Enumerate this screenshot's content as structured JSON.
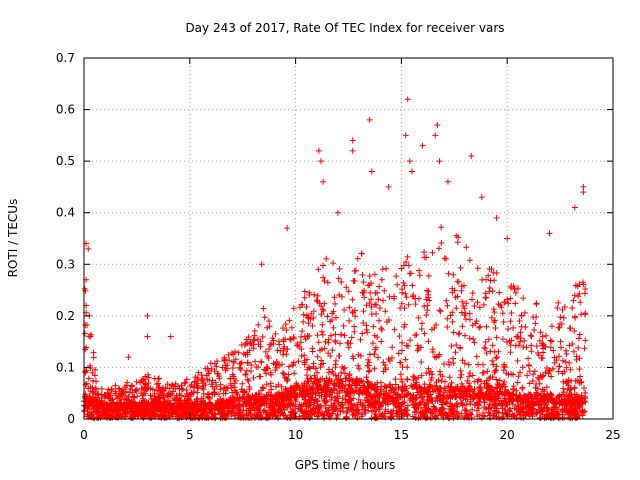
{
  "chart_data": {
    "type": "scatter",
    "title": "Day 243 of 2017, Rate Of TEC Index for receiver vars",
    "xlabel": "GPS time / hours",
    "ylabel": "ROTI / TECUs",
    "xlim": [
      0,
      25
    ],
    "ylim": [
      0,
      0.7
    ],
    "xticks": [
      0,
      5,
      10,
      15,
      20,
      25
    ],
    "xtick_labels": [
      "0",
      "5",
      "10",
      "15",
      "20",
      "25"
    ],
    "yticks": [
      0,
      0.1,
      0.2,
      0.3,
      0.4,
      0.5,
      0.6,
      0.7
    ],
    "ytick_labels": [
      "0",
      "0.1",
      "0.2",
      "0.3",
      "0.4",
      "0.5",
      "0.6",
      "0.7"
    ],
    "grid": true,
    "marker": "plus",
    "series_color": "#ff0000",
    "data_range": {
      "x_min": 0,
      "x_max": 23.7
    },
    "envelope": [
      {
        "x": 0.0,
        "base": 0.03,
        "peak": 0.34
      },
      {
        "x": 0.3,
        "base": 0.03,
        "peak": 0.19
      },
      {
        "x": 0.6,
        "base": 0.02,
        "peak": 0.07
      },
      {
        "x": 1.0,
        "base": 0.02,
        "peak": 0.06
      },
      {
        "x": 2.0,
        "base": 0.02,
        "peak": 0.07
      },
      {
        "x": 3.0,
        "base": 0.02,
        "peak": 0.09
      },
      {
        "x": 4.0,
        "base": 0.02,
        "peak": 0.07
      },
      {
        "x": 5.0,
        "base": 0.02,
        "peak": 0.08
      },
      {
        "x": 6.0,
        "base": 0.02,
        "peak": 0.11
      },
      {
        "x": 7.0,
        "base": 0.025,
        "peak": 0.13
      },
      {
        "x": 8.0,
        "base": 0.03,
        "peak": 0.17
      },
      {
        "x": 8.5,
        "base": 0.03,
        "peak": 0.22
      },
      {
        "x": 9.0,
        "base": 0.03,
        "peak": 0.17
      },
      {
        "x": 10.0,
        "base": 0.04,
        "peak": 0.22
      },
      {
        "x": 11.0,
        "base": 0.05,
        "peak": 0.32
      },
      {
        "x": 12.0,
        "base": 0.05,
        "peak": 0.3
      },
      {
        "x": 13.0,
        "base": 0.05,
        "peak": 0.33
      },
      {
        "x": 14.0,
        "base": 0.04,
        "peak": 0.29
      },
      {
        "x": 15.0,
        "base": 0.04,
        "peak": 0.31
      },
      {
        "x": 16.0,
        "base": 0.04,
        "peak": 0.34
      },
      {
        "x": 17.0,
        "base": 0.04,
        "peak": 0.38
      },
      {
        "x": 18.0,
        "base": 0.04,
        "peak": 0.34
      },
      {
        "x": 19.0,
        "base": 0.04,
        "peak": 0.3
      },
      {
        "x": 20.0,
        "base": 0.04,
        "peak": 0.27
      },
      {
        "x": 21.0,
        "base": 0.03,
        "peak": 0.24
      },
      {
        "x": 22.0,
        "base": 0.03,
        "peak": 0.22
      },
      {
        "x": 23.0,
        "base": 0.03,
        "peak": 0.24
      },
      {
        "x": 23.7,
        "base": 0.03,
        "peak": 0.3
      }
    ],
    "notable_points": [
      {
        "x": 0.1,
        "y": 0.34
      },
      {
        "x": 0.2,
        "y": 0.33
      },
      {
        "x": 0.1,
        "y": 0.27
      },
      {
        "x": 0.1,
        "y": 0.22
      },
      {
        "x": 3.0,
        "y": 0.2
      },
      {
        "x": 3.0,
        "y": 0.16
      },
      {
        "x": 4.1,
        "y": 0.16
      },
      {
        "x": 2.1,
        "y": 0.12
      },
      {
        "x": 8.4,
        "y": 0.3
      },
      {
        "x": 9.6,
        "y": 0.37
      },
      {
        "x": 11.1,
        "y": 0.52
      },
      {
        "x": 11.2,
        "y": 0.5
      },
      {
        "x": 11.3,
        "y": 0.46
      },
      {
        "x": 12.0,
        "y": 0.4
      },
      {
        "x": 12.7,
        "y": 0.54
      },
      {
        "x": 12.7,
        "y": 0.52
      },
      {
        "x": 13.5,
        "y": 0.58
      },
      {
        "x": 13.6,
        "y": 0.48
      },
      {
        "x": 14.4,
        "y": 0.45
      },
      {
        "x": 15.3,
        "y": 0.62
      },
      {
        "x": 15.2,
        "y": 0.55
      },
      {
        "x": 15.4,
        "y": 0.5
      },
      {
        "x": 15.5,
        "y": 0.48
      },
      {
        "x": 16.0,
        "y": 0.53
      },
      {
        "x": 16.7,
        "y": 0.57
      },
      {
        "x": 16.6,
        "y": 0.55
      },
      {
        "x": 16.8,
        "y": 0.5
      },
      {
        "x": 17.2,
        "y": 0.46
      },
      {
        "x": 18.3,
        "y": 0.51
      },
      {
        "x": 18.8,
        "y": 0.43
      },
      {
        "x": 19.5,
        "y": 0.39
      },
      {
        "x": 20.0,
        "y": 0.35
      },
      {
        "x": 22.0,
        "y": 0.36
      },
      {
        "x": 23.2,
        "y": 0.41
      },
      {
        "x": 23.6,
        "y": 0.45
      },
      {
        "x": 23.6,
        "y": 0.44
      }
    ]
  }
}
